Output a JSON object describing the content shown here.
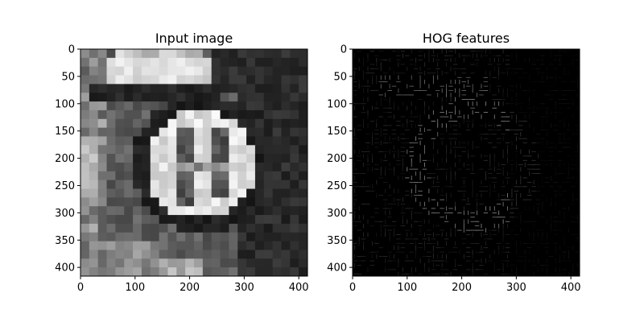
{
  "figure": {
    "background": "#ffffff",
    "panels": [
      {
        "id": "input",
        "title": "Input image",
        "kind": "grayscale-pixelated-photo",
        "description_colors": {
          "dark": "#0a0a0a",
          "light": "#f0f0f0"
        },
        "x_ticks": [
          0,
          100,
          200,
          300,
          400
        ],
        "y_ticks": [
          0,
          50,
          100,
          150,
          200,
          250,
          300,
          350,
          400
        ],
        "xlim": [
          0,
          416
        ],
        "ylim": [
          416,
          0
        ]
      },
      {
        "id": "hog",
        "title": "HOG features",
        "kind": "hog-visualization",
        "background_color": "#000000",
        "stroke_color": "#ffffff",
        "x_ticks": [
          0,
          100,
          200,
          300,
          400
        ],
        "y_ticks": [
          0,
          50,
          100,
          150,
          200,
          250,
          300,
          350,
          400
        ],
        "xlim": [
          0,
          416
        ],
        "ylim": [
          416,
          0
        ]
      }
    ]
  }
}
